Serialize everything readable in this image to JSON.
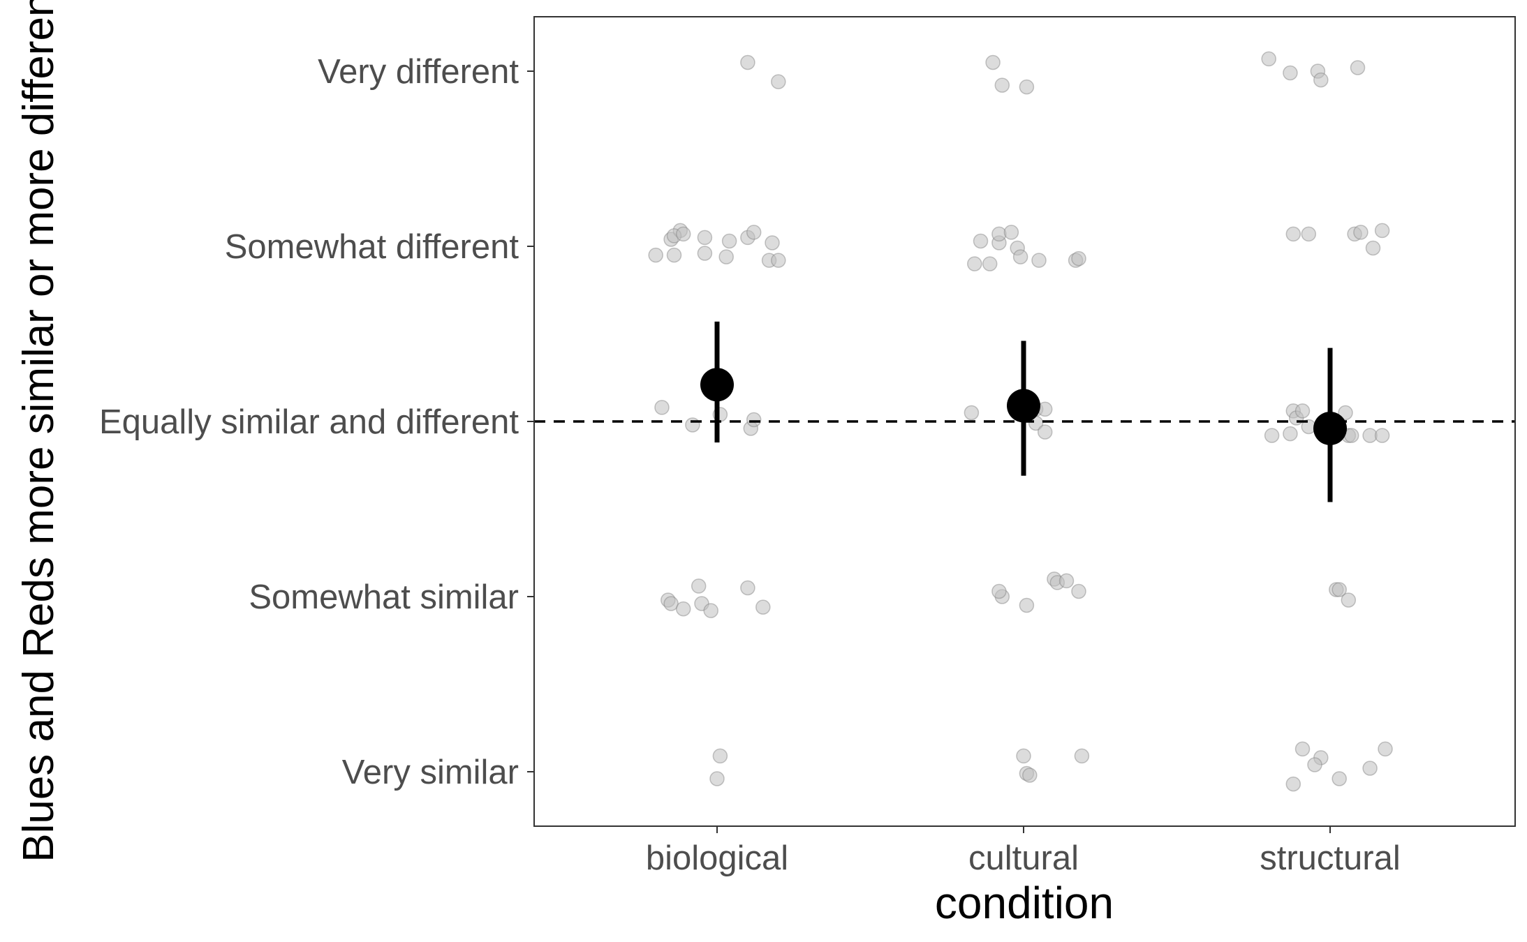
{
  "chart_data": {
    "type": "scatter",
    "xlabel": "condition",
    "ylabel": "Blues and Reds more similar or more different",
    "categories": [
      "biological",
      "cultural",
      "structural"
    ],
    "y_levels": [
      "Very similar",
      "Somewhat similar",
      "Equally similar and different",
      "Somewhat different",
      "Very different"
    ],
    "y_values": [
      -2,
      -1,
      0,
      1,
      2
    ],
    "ylim": [
      -2.3,
      2.3
    ],
    "reference_line": {
      "y": 0,
      "style": "dashed"
    },
    "grid": false,
    "legend": "none",
    "summary": [
      {
        "category": "biological",
        "mean": 0.21,
        "lower": -0.12,
        "upper": 0.57
      },
      {
        "category": "cultural",
        "mean": 0.09,
        "lower": -0.31,
        "upper": 0.46
      },
      {
        "category": "structural",
        "mean": -0.04,
        "lower": -0.46,
        "upper": 0.42
      }
    ],
    "raw_points": [
      {
        "category": "biological",
        "points": [
          [
            0.1,
            2.05
          ],
          [
            0.2,
            1.94
          ],
          [
            -0.2,
            0.95
          ],
          [
            -0.14,
            0.95
          ],
          [
            -0.15,
            1.04
          ],
          [
            -0.12,
            1.09
          ],
          [
            -0.14,
            1.06
          ],
          [
            -0.11,
            1.07
          ],
          [
            -0.04,
            1.05
          ],
          [
            -0.04,
            0.96
          ],
          [
            0.04,
            1.03
          ],
          [
            0.03,
            0.94
          ],
          [
            0.1,
            1.05
          ],
          [
            0.12,
            1.08
          ],
          [
            0.18,
            1.02
          ],
          [
            0.17,
            0.92
          ],
          [
            0.2,
            0.92
          ],
          [
            -0.18,
            0.08
          ],
          [
            -0.08,
            -0.02
          ],
          [
            0.01,
            0.04
          ],
          [
            0.11,
            -0.04
          ],
          [
            0.12,
            0.01
          ],
          [
            -0.16,
            -1.02
          ],
          [
            -0.15,
            -1.04
          ],
          [
            -0.11,
            -1.07
          ],
          [
            -0.06,
            -0.94
          ],
          [
            -0.05,
            -1.04
          ],
          [
            -0.02,
            -1.08
          ],
          [
            0.1,
            -0.95
          ],
          [
            0.15,
            -1.06
          ],
          [
            0.01,
            -1.91
          ],
          [
            0.0,
            -2.04
          ]
        ]
      },
      {
        "category": "cultural",
        "points": [
          [
            -0.1,
            2.05
          ],
          [
            -0.07,
            1.92
          ],
          [
            0.01,
            1.91
          ],
          [
            -0.16,
            0.9
          ],
          [
            -0.11,
            0.9
          ],
          [
            -0.14,
            1.03
          ],
          [
            -0.08,
            1.02
          ],
          [
            -0.08,
            1.07
          ],
          [
            -0.04,
            1.08
          ],
          [
            -0.02,
            0.99
          ],
          [
            -0.01,
            0.94
          ],
          [
            0.05,
            0.92
          ],
          [
            0.17,
            0.92
          ],
          [
            0.18,
            0.93
          ],
          [
            -0.17,
            0.05
          ],
          [
            0.04,
            0.07
          ],
          [
            0.07,
            0.07
          ],
          [
            0.04,
            -0.01
          ],
          [
            0.07,
            -0.06
          ],
          [
            -0.07,
            -1.0
          ],
          [
            -0.08,
            -0.97
          ],
          [
            0.01,
            -1.05
          ],
          [
            0.1,
            -0.9
          ],
          [
            0.11,
            -0.92
          ],
          [
            0.14,
            -0.91
          ],
          [
            0.18,
            -0.97
          ],
          [
            0.0,
            -1.91
          ],
          [
            0.01,
            -2.01
          ],
          [
            0.02,
            -2.02
          ],
          [
            0.19,
            -1.91
          ]
        ]
      },
      {
        "category": "structural",
        "points": [
          [
            -0.2,
            2.07
          ],
          [
            -0.13,
            1.99
          ],
          [
            -0.04,
            2.0
          ],
          [
            -0.03,
            1.95
          ],
          [
            0.09,
            2.02
          ],
          [
            -0.12,
            1.07
          ],
          [
            -0.07,
            1.07
          ],
          [
            0.08,
            1.07
          ],
          [
            0.1,
            1.08
          ],
          [
            0.14,
            0.99
          ],
          [
            0.17,
            1.09
          ],
          [
            -0.19,
            -0.08
          ],
          [
            -0.13,
            -0.07
          ],
          [
            -0.12,
            0.06
          ],
          [
            -0.11,
            0.02
          ],
          [
            -0.09,
            0.06
          ],
          [
            -0.07,
            -0.03
          ],
          [
            0.02,
            -0.03
          ],
          [
            0.05,
            0.05
          ],
          [
            0.06,
            -0.08
          ],
          [
            0.07,
            -0.08
          ],
          [
            0.13,
            -0.08
          ],
          [
            0.17,
            -0.08
          ],
          [
            0.02,
            -0.96
          ],
          [
            0.03,
            -0.96
          ],
          [
            0.06,
            -1.02
          ],
          [
            -0.09,
            -1.87
          ],
          [
            -0.03,
            -1.92
          ],
          [
            -0.05,
            -1.96
          ],
          [
            0.03,
            -2.04
          ],
          [
            -0.12,
            -2.07
          ],
          [
            0.13,
            -1.98
          ],
          [
            0.18,
            -1.87
          ]
        ]
      }
    ]
  }
}
